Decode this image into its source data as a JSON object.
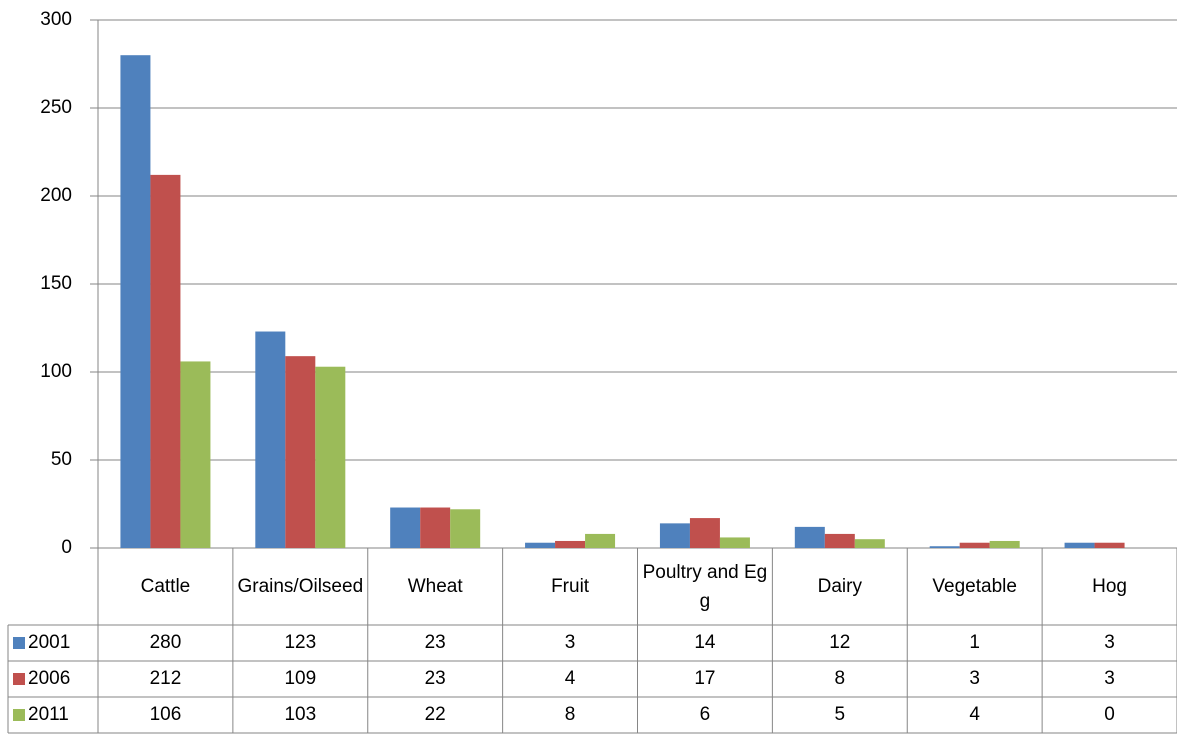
{
  "chart_data": {
    "type": "bar",
    "categories": [
      "Cattle",
      "Grains/Oilseed",
      "Wheat",
      "Fruit",
      "Poultry and Egg",
      "Dairy",
      "Vegetable",
      "Hog"
    ],
    "series": [
      {
        "name": "2001",
        "color": "#4f81bd",
        "values": [
          280,
          123,
          23,
          3,
          14,
          12,
          1,
          3
        ]
      },
      {
        "name": "2006",
        "color": "#c0504d",
        "values": [
          212,
          109,
          23,
          4,
          17,
          8,
          3,
          3
        ]
      },
      {
        "name": "2011",
        "color": "#9bbb59",
        "values": [
          106,
          103,
          22,
          8,
          6,
          5,
          4,
          0
        ]
      }
    ],
    "ylim": [
      0,
      300
    ],
    "yticks": [
      0,
      50,
      100,
      150,
      200,
      250,
      300
    ],
    "grid": true,
    "data_table": true
  }
}
